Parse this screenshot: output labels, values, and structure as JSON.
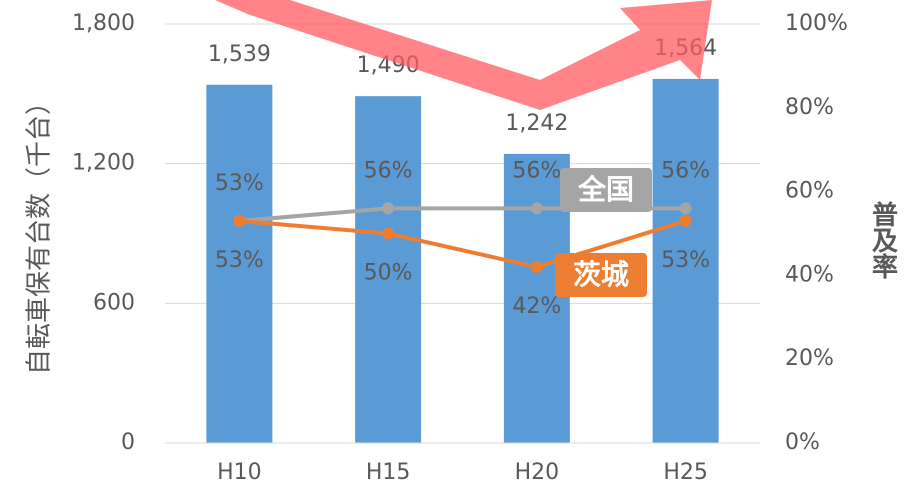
{
  "chart_data": {
    "type": "bar",
    "categories": [
      "H10",
      "H15",
      "H20",
      "H25"
    ],
    "values": [
      1539,
      1490,
      1242,
      1564
    ],
    "value_labels": [
      "1,539",
      "1,490",
      "1,242",
      "1,564"
    ],
    "color": "#5b9bd5",
    "y_label": "自転車保有台数（千台）",
    "y2_label": "普及率",
    "ylim": [
      0,
      1800
    ],
    "yticks": [
      0,
      600,
      {
        "value": 1200,
        "label": "1,200"
      },
      {
        "value": 1800,
        "label": "1,800"
      }
    ],
    "y2lim": [
      0,
      100
    ],
    "y2ticks": [
      {
        "value": 0,
        "label": "0%"
      },
      {
        "value": 20,
        "label": "20%"
      },
      {
        "value": 40,
        "label": "40%"
      },
      {
        "value": 60,
        "label": "60%"
      },
      {
        "value": 80,
        "label": "80%"
      },
      {
        "value": 100,
        "label": "100%"
      }
    ],
    "grid": true,
    "series": [
      {
        "name": "全国",
        "color": "#a5a5a5",
        "axis": "y2",
        "values": [
          53,
          56,
          56,
          56
        ],
        "value_labels": [
          "53%",
          "56%",
          "56%",
          "56%"
        ]
      },
      {
        "name": "茨城",
        "color": "#ed7d31",
        "axis": "y2",
        "values": [
          53,
          50,
          42,
          53
        ],
        "value_labels": [
          "53%",
          "50%",
          "42%",
          "53%"
        ]
      }
    ]
  }
}
